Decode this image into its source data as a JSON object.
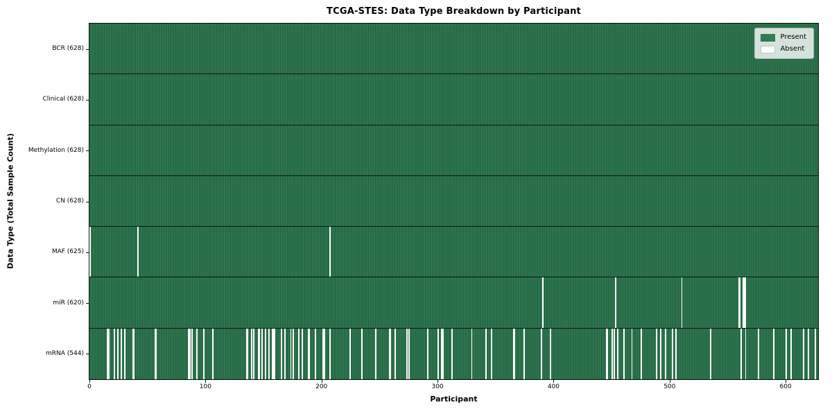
{
  "figure": {
    "title": "TCGA-STES: Data Type Breakdown by Participant",
    "xlabel": "Participant",
    "ylabel": "Data Type (Total Sample Count)"
  },
  "legend": {
    "position": "upper right",
    "items": [
      {
        "label": "Present",
        "color": "#2e7d51"
      },
      {
        "label": "Absent",
        "color": "#ffffff"
      }
    ]
  },
  "chart_data": {
    "type": "heatmap",
    "title": "TCGA-STES: Data Type Breakdown by Participant",
    "xlabel": "Participant",
    "ylabel": "Data Type (Total Sample Count)",
    "x_ticks": [
      0,
      100,
      200,
      300,
      400,
      500,
      600
    ],
    "x_range": [
      0,
      628
    ],
    "n_participants": 628,
    "grid": false,
    "legend_position": "upper right",
    "colors": {
      "present": "#2e7d51",
      "present_edge": "#1f5a39",
      "absent": "#ffffff"
    },
    "rows": [
      {
        "label": "BCR (628)",
        "data_type": "BCR",
        "present_count": 628,
        "absent_count": 0,
        "absent_participants": []
      },
      {
        "label": "Clinical (628)",
        "data_type": "Clinical",
        "present_count": 628,
        "absent_count": 0,
        "absent_participants": []
      },
      {
        "label": "Methylation (628)",
        "data_type": "Methylation",
        "present_count": 628,
        "absent_count": 0,
        "absent_participants": []
      },
      {
        "label": "CN (628)",
        "data_type": "CN",
        "present_count": 628,
        "absent_count": 0,
        "absent_participants": []
      },
      {
        "label": "MAF (625)",
        "data_type": "MAF",
        "present_count": 625,
        "absent_count": 3,
        "absent_participants": [
          0,
          41,
          207
        ]
      },
      {
        "label": "miR (620)",
        "data_type": "miR",
        "present_count": 620,
        "absent_count": 8,
        "absent_participants": [
          390,
          453,
          510,
          559,
          560,
          563,
          564,
          565
        ]
      },
      {
        "label": "mRNA (544)",
        "data_type": "mRNA",
        "present_count": 544,
        "absent_count": 84,
        "absent_participants": [
          15,
          16,
          21,
          24,
          27,
          30,
          37,
          38,
          56,
          57,
          85,
          86,
          88,
          92,
          98,
          106,
          135,
          136,
          139,
          141,
          145,
          146,
          148,
          151,
          154,
          157,
          158,
          159,
          165,
          168,
          173,
          175,
          180,
          183,
          188,
          189,
          194,
          201,
          202,
          207,
          224,
          234,
          246,
          258,
          259,
          263,
          273,
          275,
          291,
          300,
          303,
          304,
          312,
          329,
          341,
          346,
          365,
          366,
          374,
          389,
          397,
          445,
          446,
          450,
          452,
          455,
          460,
          467,
          475,
          488,
          492,
          496,
          502,
          505,
          535,
          561,
          565,
          576,
          589,
          600,
          604,
          615,
          619,
          625
        ]
      }
    ]
  }
}
